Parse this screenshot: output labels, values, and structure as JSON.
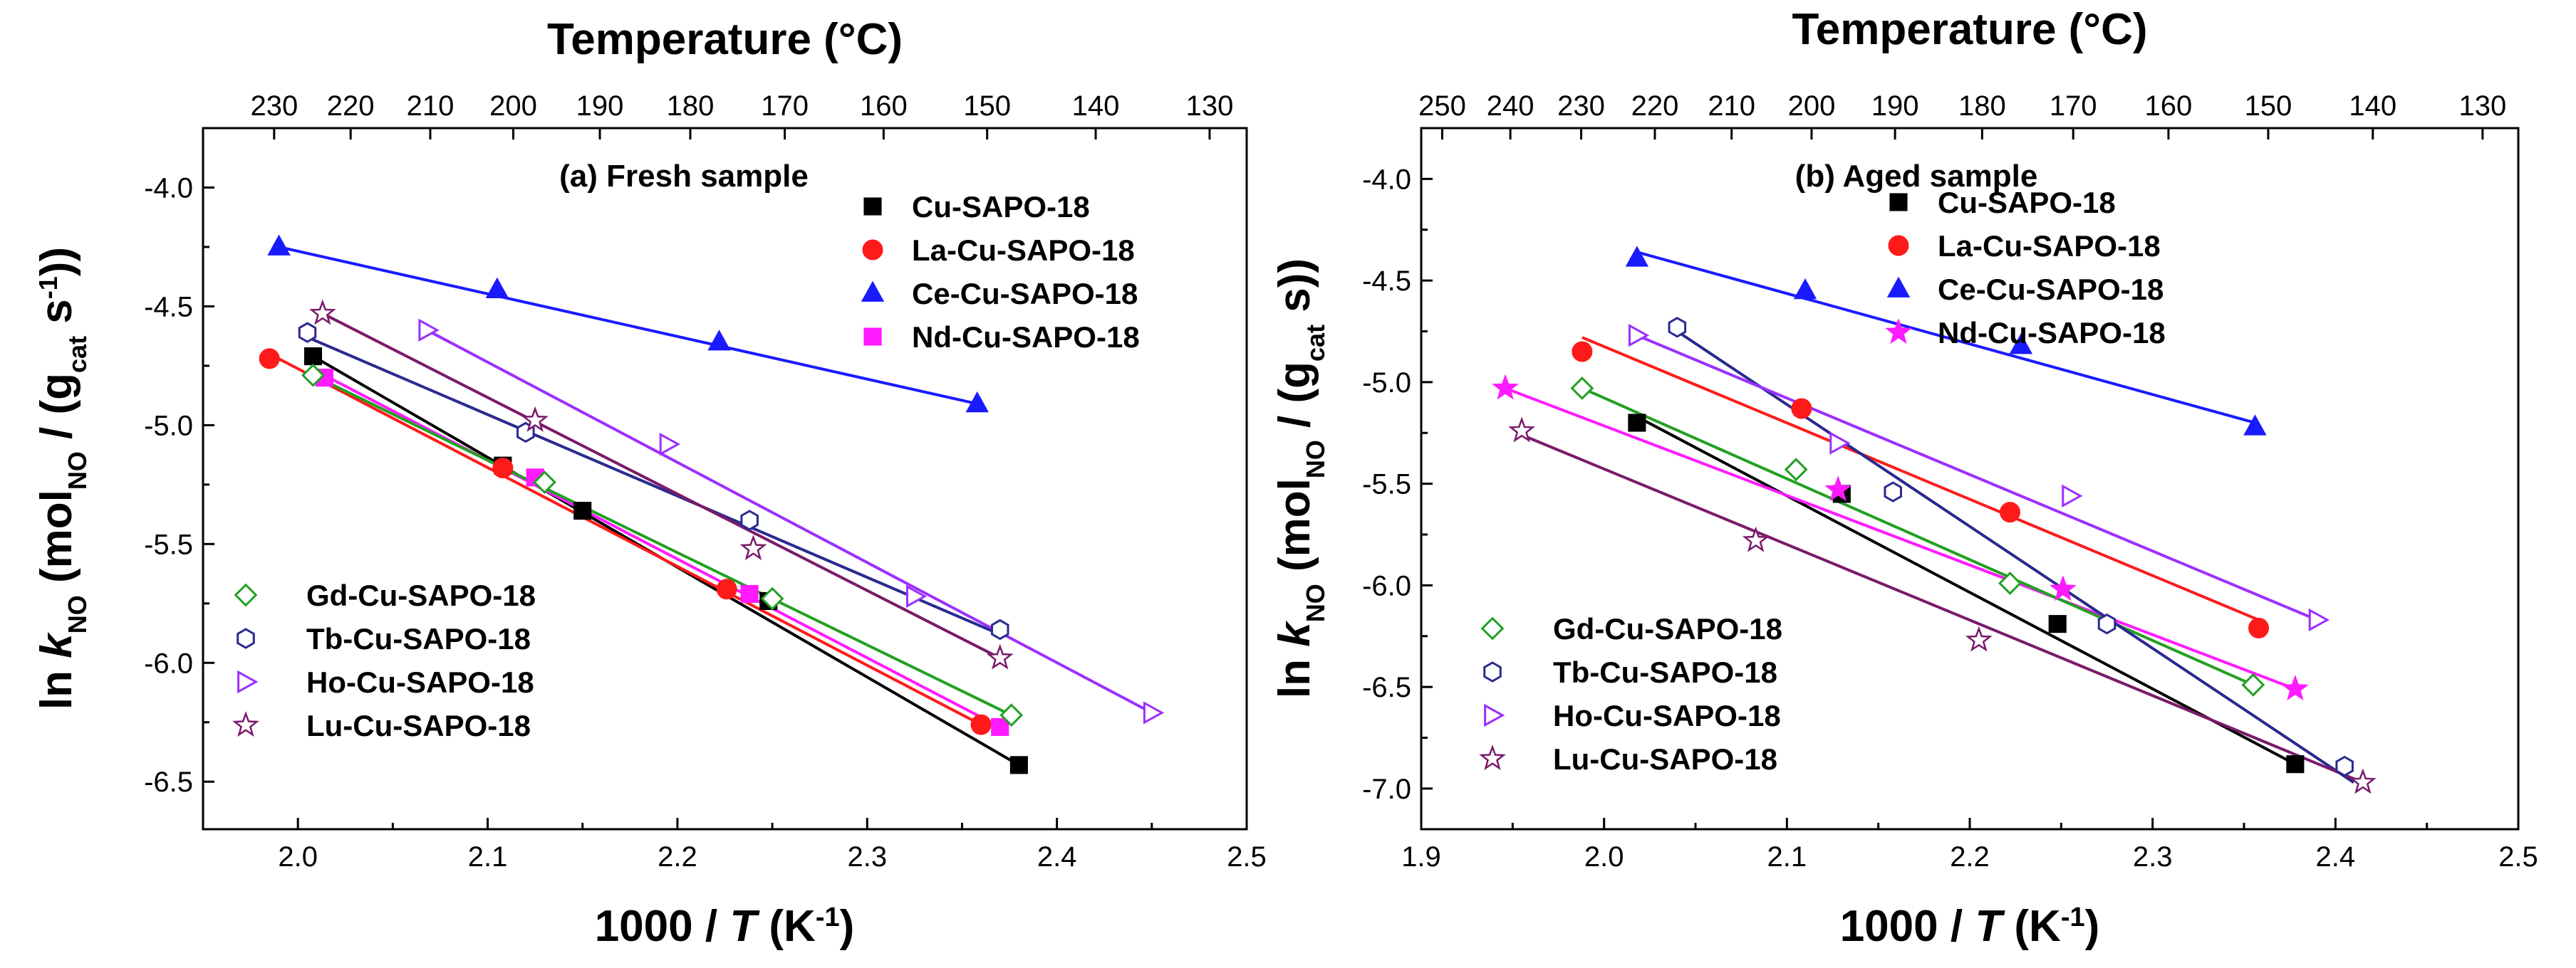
{
  "chart_data": [
    {
      "type": "scatter",
      "title": "(a) Fresh sample",
      "xlabel": {
        "main": "1000 / ",
        "italic": "T",
        "unit": " (K",
        "sup": "-1",
        "close": ")"
      },
      "ylabel": {
        "pre": "ln ",
        "italic": "k",
        "sub": "NO",
        "mid": " (mol",
        "sub2": "NO",
        "mid2": " / (g",
        "sub3": "cat",
        "mid3": " s",
        "sup": "-1",
        "close": "))"
      },
      "top_axis_label": "Temperature (°C)",
      "xlim": [
        1.95,
        2.5
      ],
      "ylim": [
        -6.7,
        -3.75
      ],
      "x_ticks": [
        2.0,
        2.1,
        2.2,
        2.3,
        2.4,
        2.5
      ],
      "x_tick_labels": [
        "2.0",
        "2.1",
        "2.2",
        "2.3",
        "2.4",
        "2.5"
      ],
      "y_ticks": [
        -4.0,
        -4.5,
        -5.0,
        -5.5,
        -6.0,
        -6.5
      ],
      "y_tick_labels": [
        "-4.0",
        "-4.5",
        "-5.0",
        "-5.5",
        "-6.0",
        "-6.5"
      ],
      "top_ticks_celsius": [
        230,
        220,
        210,
        200,
        190,
        180,
        170,
        160,
        150,
        140,
        130
      ],
      "top_tick_labels": [
        "230",
        "220",
        "210",
        "200",
        "190",
        "180",
        "170",
        "160",
        "150",
        "140",
        "130"
      ],
      "legend_top": [
        "Cu-SAPO-18",
        "La-Cu-SAPO-18",
        "Ce-Cu-SAPO-18",
        "Nd-Cu-SAPO-18"
      ],
      "legend_bottom": [
        "Gd-Cu-SAPO-18",
        "Tb-Cu-SAPO-18",
        "Ho-Cu-SAPO-18",
        "Lu-Cu-SAPO-18"
      ],
      "series": [
        {
          "name": "Cu-SAPO-18",
          "marker": "square",
          "filled": true,
          "color": "#000000",
          "x": [
            2.008,
            2.108,
            2.15,
            2.248,
            2.38
          ],
          "y": [
            -4.71,
            -5.17,
            -5.36,
            -5.74,
            -6.43
          ],
          "fit": [
            [
              2.008,
              -4.71
            ],
            [
              2.38,
              -6.43
            ]
          ]
        },
        {
          "name": "La-Cu-SAPO-18",
          "marker": "circle",
          "filled": true,
          "color": "#ff1a1a",
          "x": [
            1.985,
            2.108,
            2.226,
            2.36
          ],
          "y": [
            -4.72,
            -5.18,
            -5.69,
            -6.26
          ],
          "fit": [
            [
              1.985,
              -4.7
            ],
            [
              2.36,
              -6.26
            ]
          ]
        },
        {
          "name": "Ce-Cu-SAPO-18",
          "marker": "triangle",
          "filled": true,
          "color": "#1a1aff",
          "x": [
            1.99,
            2.105,
            2.222,
            2.358
          ],
          "y": [
            -4.25,
            -4.43,
            -4.65,
            -4.91
          ],
          "fit": [
            [
              1.99,
              -4.25
            ],
            [
              2.358,
              -4.91
            ]
          ]
        },
        {
          "name": "Nd-Cu-SAPO-18",
          "marker": "square",
          "filled": true,
          "color": "#ff1aff",
          "x": [
            2.014,
            2.125,
            2.238,
            2.37
          ],
          "y": [
            -4.8,
            -5.22,
            -5.71,
            -6.27
          ],
          "fit": [
            [
              2.014,
              -4.79
            ],
            [
              2.37,
              -6.27
            ]
          ]
        },
        {
          "name": "Gd-Cu-SAPO-18",
          "marker": "diamond",
          "filled": false,
          "color": "#22a022",
          "x": [
            2.008,
            2.13,
            2.25,
            2.376
          ],
          "y": [
            -4.79,
            -5.24,
            -5.73,
            -6.22
          ],
          "fit": [
            [
              2.008,
              -4.79
            ],
            [
              2.376,
              -6.22
            ]
          ]
        },
        {
          "name": "Tb-Cu-SAPO-18",
          "marker": "hexagon",
          "filled": false,
          "color": "#2a2a90",
          "x": [
            2.005,
            2.12,
            2.238,
            2.37
          ],
          "y": [
            -4.61,
            -5.03,
            -5.4,
            -5.86
          ],
          "fit": [
            [
              2.005,
              -4.63
            ],
            [
              2.37,
              -5.88
            ]
          ]
        },
        {
          "name": "Ho-Cu-SAPO-18",
          "marker": "triangle-right",
          "filled": false,
          "color": "#9b30ff",
          "x": [
            2.068,
            2.195,
            2.325,
            2.45
          ],
          "y": [
            -4.6,
            -5.08,
            -5.72,
            -6.21
          ],
          "fit": [
            [
              2.068,
              -4.6
            ],
            [
              2.45,
              -6.21
            ]
          ]
        },
        {
          "name": "Lu-Cu-SAPO-18",
          "marker": "star",
          "filled": false,
          "color": "#7a1a6a",
          "x": [
            2.013,
            2.125,
            2.24,
            2.37
          ],
          "y": [
            -4.53,
            -4.98,
            -5.52,
            -5.98
          ],
          "fit": [
            [
              2.013,
              -4.53
            ],
            [
              2.37,
              -5.98
            ]
          ]
        }
      ]
    },
    {
      "type": "scatter",
      "title": "(b) Aged sample",
      "xlabel": {
        "main": "1000 / ",
        "italic": "T",
        "unit": " (K",
        "sup": "-1",
        "close": ")"
      },
      "ylabel": {
        "pre": "ln ",
        "italic": "k",
        "sub": "NO",
        "mid": " (mol",
        "sub2": "NO",
        "mid2": " / (g",
        "sub3": "cat",
        "mid3": " s",
        "sup": "",
        "close": "))"
      },
      "top_axis_label": "Temperature (°C)",
      "xlim": [
        1.9,
        2.5
      ],
      "ylim": [
        -7.2,
        -3.75
      ],
      "x_ticks": [
        1.9,
        2.0,
        2.1,
        2.2,
        2.3,
        2.4,
        2.5
      ],
      "x_tick_labels": [
        "1.9",
        "2.0",
        "2.1",
        "2.2",
        "2.3",
        "2.4",
        "2.5"
      ],
      "y_ticks": [
        -4.0,
        -4.5,
        -5.0,
        -5.5,
        -6.0,
        -6.5,
        -7.0
      ],
      "y_tick_labels": [
        "-4.0",
        "-4.5",
        "-5.0",
        "-5.5",
        "-6.0",
        "-6.5",
        "-7.0"
      ],
      "top_ticks_celsius": [
        250,
        240,
        230,
        220,
        210,
        200,
        190,
        180,
        170,
        160,
        150,
        140,
        130
      ],
      "top_tick_labels": [
        "250",
        "240",
        "230",
        "220",
        "210",
        "200",
        "190",
        "180",
        "170",
        "160",
        "150",
        "140",
        "130"
      ],
      "legend_top": [
        "Cu-SAPO-18",
        "La-Cu-SAPO-18",
        "Ce-Cu-SAPO-18",
        "Nd-Cu-SAPO-18"
      ],
      "legend_bottom": [
        "Gd-Cu-SAPO-18",
        "Tb-Cu-SAPO-18",
        "Ho-Cu-SAPO-18",
        "Lu-Cu-SAPO-18"
      ],
      "series": [
        {
          "name": "Cu-SAPO-18",
          "marker": "square",
          "filled": true,
          "color": "#000000",
          "x": [
            2.018,
            2.13,
            2.248,
            2.378
          ],
          "y": [
            -5.2,
            -5.55,
            -6.19,
            -6.88
          ],
          "fit": [
            [
              2.018,
              -5.17
            ],
            [
              2.378,
              -6.88
            ]
          ]
        },
        {
          "name": "La-Cu-SAPO-18",
          "marker": "circle",
          "filled": true,
          "color": "#ff1a1a",
          "x": [
            1.988,
            2.108,
            2.222,
            2.358
          ],
          "y": [
            -4.85,
            -5.13,
            -5.64,
            -6.21
          ],
          "fit": [
            [
              1.988,
              -4.78
            ],
            [
              2.358,
              -6.17
            ]
          ]
        },
        {
          "name": "Ce-Cu-SAPO-18",
          "marker": "triangle",
          "filled": true,
          "color": "#1a1aff",
          "x": [
            2.018,
            2.11,
            2.228,
            2.356
          ],
          "y": [
            -4.39,
            -4.55,
            -4.82,
            -5.22
          ],
          "fit": [
            [
              2.018,
              -4.36
            ],
            [
              2.356,
              -5.2
            ]
          ]
        },
        {
          "name": "Nd-Cu-SAPO-18",
          "marker": "star",
          "filled": true,
          "color": "#ff1aff",
          "x": [
            1.946,
            2.128,
            2.251,
            2.378
          ],
          "y": [
            -5.03,
            -5.53,
            -6.02,
            -6.51
          ],
          "fit": [
            [
              1.946,
              -5.03
            ],
            [
              2.378,
              -6.51
            ]
          ]
        },
        {
          "name": "Gd-Cu-SAPO-18",
          "marker": "diamond",
          "filled": false,
          "color": "#22a022",
          "x": [
            1.988,
            2.105,
            2.222,
            2.355
          ],
          "y": [
            -5.03,
            -5.43,
            -5.99,
            -6.49
          ],
          "fit": [
            [
              1.988,
              -5.03
            ],
            [
              2.355,
              -6.49
            ]
          ]
        },
        {
          "name": "Tb-Cu-SAPO-18",
          "marker": "hexagon",
          "filled": false,
          "color": "#2a2a90",
          "x": [
            2.04,
            2.158,
            2.275,
            2.405
          ],
          "y": [
            -4.73,
            -5.54,
            -6.19,
            -6.89
          ],
          "fit": [
            [
              2.04,
              -4.75
            ],
            [
              2.41,
              -6.97
            ]
          ]
        },
        {
          "name": "Ho-Cu-SAPO-18",
          "marker": "triangle-right",
          "filled": false,
          "color": "#9b30ff",
          "x": [
            2.018,
            2.128,
            2.255,
            2.39
          ],
          "y": [
            -4.77,
            -5.3,
            -5.56,
            -6.17
          ],
          "fit": [
            [
              2.018,
              -4.77
            ],
            [
              2.39,
              -6.17
            ]
          ]
        },
        {
          "name": "Lu-Cu-SAPO-18",
          "marker": "star",
          "filled": false,
          "color": "#7a1a6a",
          "x": [
            1.955,
            2.083,
            2.205,
            2.415
          ],
          "y": [
            -5.24,
            -5.78,
            -6.27,
            -6.97
          ],
          "fit": [
            [
              1.955,
              -5.26
            ],
            [
              2.415,
              -6.97
            ]
          ]
        }
      ]
    }
  ]
}
